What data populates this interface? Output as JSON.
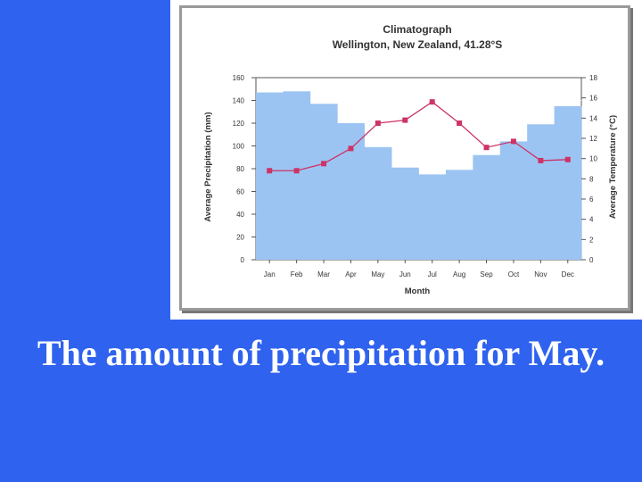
{
  "slide": {
    "caption": "The amount of precipitation for May.",
    "background_color": "#2f62ee"
  },
  "chart_data": {
    "type": "bar",
    "title": "Climatograph",
    "subtitle": "Wellington, New Zealand, 41.28°S",
    "xlabel": "Month",
    "ylabel_left": "Average Precipitation (mm)",
    "ylabel_right": "Average Temperature (°C)",
    "categories": [
      "Jan",
      "Feb",
      "Mar",
      "Apr",
      "May",
      "Jun",
      "Jul",
      "Aug",
      "Sep",
      "Oct",
      "Nov",
      "Dec"
    ],
    "ylim_left": [
      0,
      160
    ],
    "yticks_left": [
      0,
      20,
      40,
      60,
      80,
      100,
      120,
      140,
      160
    ],
    "ylim_right": [
      0,
      18
    ],
    "yticks_right": [
      0,
      2,
      4,
      6,
      8,
      10,
      12,
      14,
      16,
      18
    ],
    "grid": true,
    "series": [
      {
        "type": "bar",
        "axis": "left",
        "color": "#9cc4f2",
        "values": [
          147,
          148,
          137,
          120,
          99,
          81,
          75,
          79,
          92,
          104,
          119,
          135
        ]
      },
      {
        "type": "line",
        "axis": "right",
        "color": "#cc3366",
        "values": [
          8.8,
          8.8,
          9.5,
          11.0,
          13.5,
          13.8,
          15.6,
          13.5,
          11.1,
          11.7,
          9.8,
          9.9
        ]
      }
    ]
  }
}
